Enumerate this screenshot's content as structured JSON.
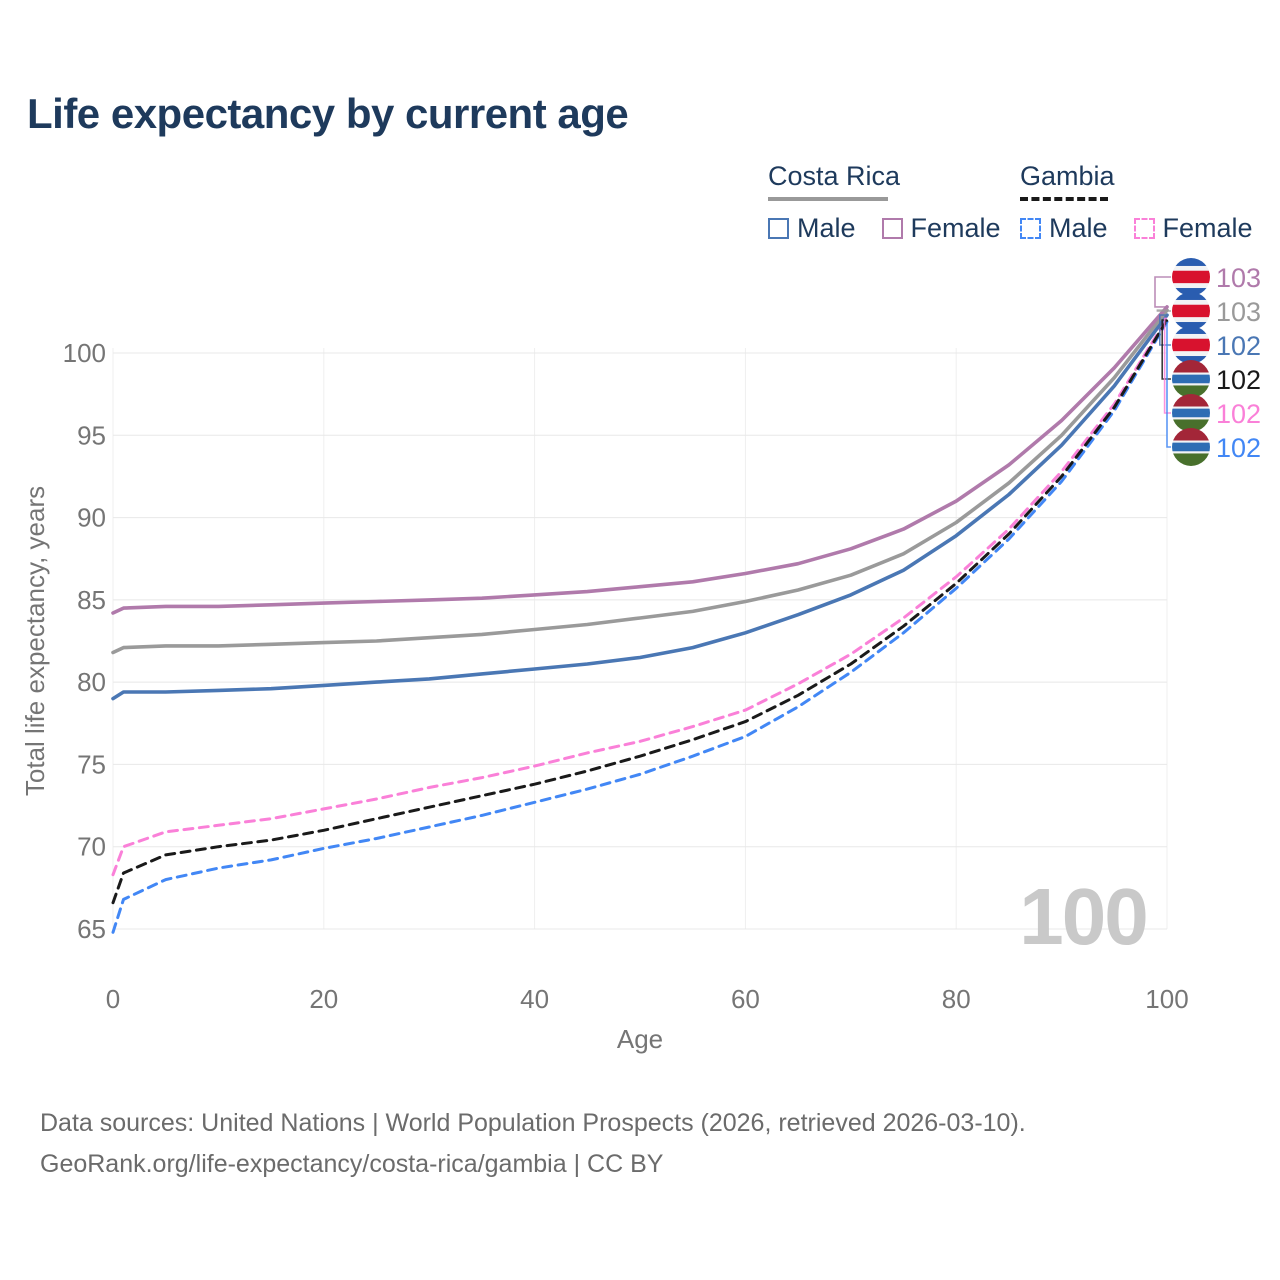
{
  "title": "Life expectancy by current age",
  "frame_label": "100",
  "legend": {
    "groups": [
      {
        "label": "Costa Rica",
        "line_style": "solid",
        "line_color": "#999999",
        "items": [
          {
            "label": "Male",
            "color": "#4a77b4"
          },
          {
            "label": "Female",
            "color": "#b07aab"
          }
        ]
      },
      {
        "label": "Gambia",
        "line_style": "dashed",
        "line_color": "#1a1a1a",
        "items": [
          {
            "label": "Male",
            "color": "#4287f5"
          },
          {
            "label": "Female",
            "color": "#fa80d8"
          }
        ]
      }
    ]
  },
  "flags": {
    "costa-rica": {
      "stripes": [
        [
          0,
          0.21,
          "#2a5db0"
        ],
        [
          0.21,
          0.335,
          "#f2f3f5"
        ],
        [
          0.335,
          0.665,
          "#d8122e"
        ],
        [
          0.665,
          0.79,
          "#f2f3f5"
        ],
        [
          0.79,
          1,
          "#2a5db0"
        ]
      ]
    },
    "gambia": {
      "stripes": [
        [
          0,
          0.33,
          "#a32638"
        ],
        [
          0.33,
          0.385,
          "#f2f3f5"
        ],
        [
          0.385,
          0.615,
          "#2e6db4"
        ],
        [
          0.615,
          0.67,
          "#f2f3f5"
        ],
        [
          0.67,
          1,
          "#48702c"
        ]
      ]
    }
  },
  "chart_data": {
    "type": "line",
    "xlabel": "Age",
    "ylabel": "Total life expectancy, years",
    "xlim": [
      0,
      100
    ],
    "ylim": [
      63.5,
      103.5
    ],
    "xticks": [
      0,
      20,
      40,
      60,
      80,
      100
    ],
    "yticks": [
      65,
      70,
      75,
      80,
      85,
      90,
      95,
      100
    ],
    "grid": true,
    "legend_position": "top-right",
    "x": [
      0,
      1,
      5,
      10,
      15,
      20,
      25,
      30,
      35,
      40,
      45,
      50,
      55,
      60,
      65,
      70,
      75,
      80,
      85,
      90,
      95,
      100
    ],
    "series": [
      {
        "id": "costa-rica-female",
        "name": "Costa Rica — Female",
        "country": "Costa Rica",
        "sex": "Female",
        "color": "#b07aab",
        "dashed": false,
        "flag": "costa-rica",
        "end_label": "103",
        "values": [
          84.2,
          84.5,
          84.6,
          84.6,
          84.7,
          84.8,
          84.9,
          85.0,
          85.1,
          85.3,
          85.5,
          85.8,
          86.1,
          86.6,
          87.2,
          88.1,
          89.3,
          91.0,
          93.2,
          95.9,
          99.1,
          102.8
        ]
      },
      {
        "id": "costa-rica-both",
        "name": "Costa Rica — Both sexes",
        "country": "Costa Rica",
        "sex": "Both sexes",
        "color": "#9a9a9a",
        "dashed": false,
        "flag": "costa-rica",
        "end_label": "103",
        "values": [
          81.8,
          82.1,
          82.2,
          82.2,
          82.3,
          82.4,
          82.5,
          82.7,
          82.9,
          83.2,
          83.5,
          83.9,
          84.3,
          84.9,
          85.6,
          86.5,
          87.8,
          89.7,
          92.1,
          95.0,
          98.5,
          102.6
        ]
      },
      {
        "id": "costa-rica-male",
        "name": "Costa Rica — Male",
        "country": "Costa Rica",
        "sex": "Male",
        "color": "#4a77b4",
        "dashed": false,
        "flag": "costa-rica",
        "end_label": "102",
        "values": [
          79.0,
          79.4,
          79.4,
          79.5,
          79.6,
          79.8,
          80.0,
          80.2,
          80.5,
          80.8,
          81.1,
          81.5,
          82.1,
          83.0,
          84.1,
          85.3,
          86.8,
          88.9,
          91.4,
          94.4,
          98.0,
          102.3
        ]
      },
      {
        "id": "gambia-both",
        "name": "Gambia — Both sexes",
        "country": "Gambia",
        "sex": "Both sexes",
        "color": "#1a1a1a",
        "dashed": true,
        "flag": "gambia",
        "end_label": "102",
        "values": [
          66.6,
          68.4,
          69.5,
          70.0,
          70.4,
          71.0,
          71.7,
          72.4,
          73.1,
          73.8,
          74.6,
          75.5,
          76.5,
          77.6,
          79.2,
          81.1,
          83.4,
          86.0,
          89.0,
          92.5,
          96.7,
          102.0
        ]
      },
      {
        "id": "gambia-female",
        "name": "Gambia — Female",
        "country": "Gambia",
        "sex": "Female",
        "color": "#fa80d8",
        "dashed": true,
        "flag": "gambia",
        "end_label": "102",
        "values": [
          68.3,
          70.0,
          70.9,
          71.3,
          71.7,
          72.3,
          72.9,
          73.6,
          74.2,
          74.9,
          75.7,
          76.4,
          77.3,
          78.3,
          79.9,
          81.7,
          83.9,
          86.4,
          89.3,
          92.8,
          96.9,
          102.1
        ]
      },
      {
        "id": "gambia-male",
        "name": "Gambia — Male",
        "country": "Gambia",
        "sex": "Male",
        "color": "#4287f5",
        "dashed": true,
        "flag": "gambia",
        "end_label": "102",
        "values": [
          64.8,
          66.8,
          68.0,
          68.7,
          69.2,
          69.9,
          70.5,
          71.2,
          71.9,
          72.7,
          73.5,
          74.4,
          75.5,
          76.7,
          78.5,
          80.6,
          83.0,
          85.7,
          88.7,
          92.2,
          96.5,
          101.9
        ]
      }
    ]
  },
  "footer": {
    "line1": "Data sources: United Nations | World Population Prospects (2026, retrieved 2026-03-10).",
    "line2": "GeoRank.org/life-expectancy/costa-rica/gambia | CC BY"
  }
}
